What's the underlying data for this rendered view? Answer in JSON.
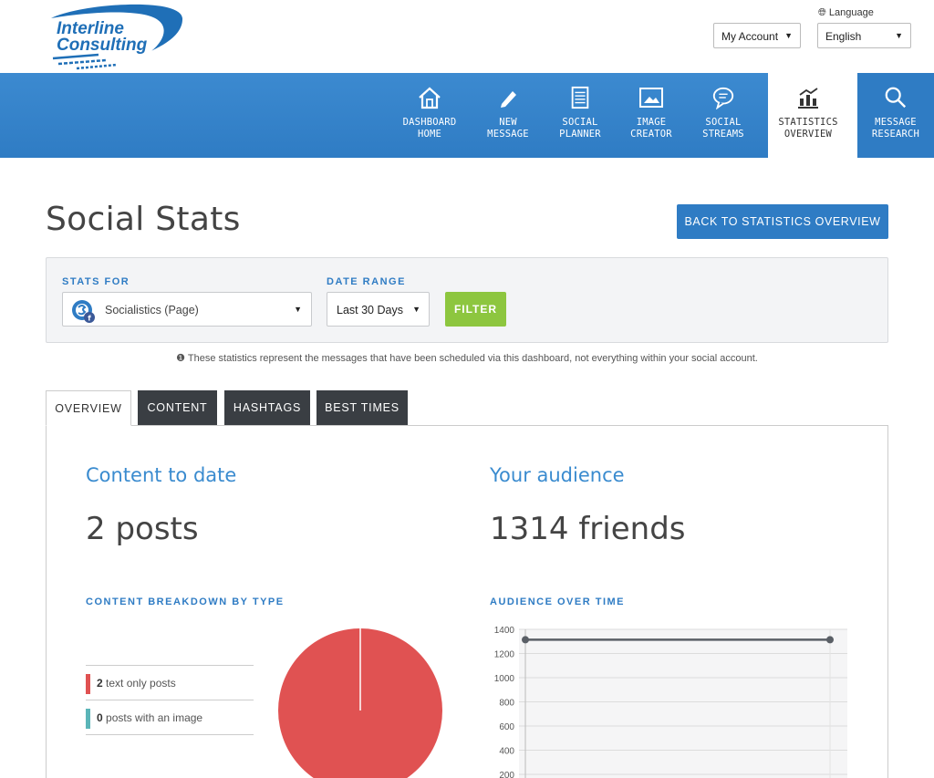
{
  "header": {
    "logo_line1": "Interline",
    "logo_line2": "Consulting",
    "account_label": "My Account",
    "language_label": "Language",
    "language_value": "English"
  },
  "nav": {
    "items": [
      {
        "line1": "DASHBOARD",
        "line2": "HOME",
        "icon": "house-icon"
      },
      {
        "line1": "NEW",
        "line2": "MESSAGE",
        "icon": "pencil-icon"
      },
      {
        "line1": "SOCIAL",
        "line2": "PLANNER",
        "icon": "calendar-icon"
      },
      {
        "line1": "IMAGE",
        "line2": "CREATOR",
        "icon": "image-icon"
      },
      {
        "line1": "SOCIAL",
        "line2": "STREAMS",
        "icon": "chat-bubble-icon"
      },
      {
        "line1": "STATISTICS",
        "line2": "OVERVIEW",
        "icon": "bar-chart-icon"
      },
      {
        "line1": "MESSAGE",
        "line2": "RESEARCH",
        "icon": "magnifier-icon"
      }
    ]
  },
  "page": {
    "title": "Social Stats",
    "back_button": "BACK TO STATISTICS OVERVIEW"
  },
  "filter": {
    "stats_for_label": "STATS FOR",
    "stats_for_value": "Socialistics (Page)",
    "date_range_label": "DATE RANGE",
    "date_range_value": "Last 30 Days",
    "filter_button": "FILTER"
  },
  "note": "These statistics represent the messages that have been scheduled via this dashboard, not everything within your social account.",
  "tabs": [
    "OVERVIEW",
    "CONTENT",
    "HASHTAGS",
    "BEST TIMES"
  ],
  "overview": {
    "content_heading": "Content to date",
    "content_value": "2 posts",
    "audience_heading": "Your audience",
    "audience_value": "1314 friends",
    "breakdown_heading": "CONTENT BREAKDOWN BY TYPE",
    "audience_chart_heading": "AUDIENCE OVER TIME",
    "legend": [
      {
        "count": "2",
        "label": "text only posts",
        "color": "#e05252"
      },
      {
        "count": "0",
        "label": "posts with an image",
        "color": "#5bb5b8"
      }
    ]
  },
  "colors": {
    "brand_blue": "#2f7cc4",
    "filter_green": "#8dc63f",
    "pie_red": "#e05252",
    "line_gray": "#5a5f66"
  },
  "chart_data": [
    {
      "type": "pie",
      "title": "CONTENT BREAKDOWN BY TYPE",
      "categories": [
        "text only posts",
        "posts with an image"
      ],
      "values": [
        2,
        0
      ]
    },
    {
      "type": "line",
      "title": "AUDIENCE OVER TIME",
      "series": [
        {
          "values": [
            1314,
            1314
          ]
        }
      ],
      "ylim": [
        200,
        1400
      ],
      "yticks": [
        1400,
        1200,
        1000,
        800,
        600,
        400,
        200
      ],
      "grid": true
    }
  ]
}
